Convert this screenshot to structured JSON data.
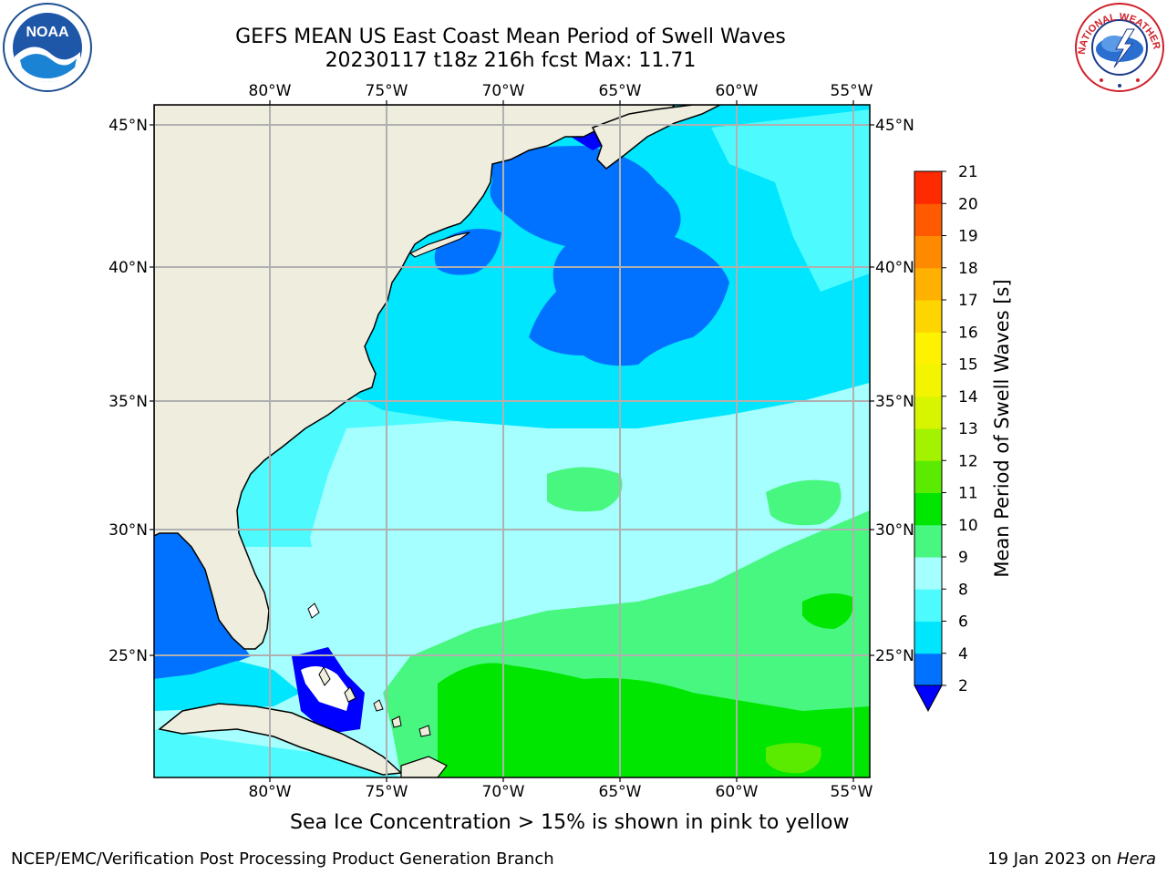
{
  "title": {
    "line1": "GEFS MEAN US East Coast Mean Period of Swell Waves",
    "line2": "20230117 t18z 216h fcst   Max: 11.71"
  },
  "map": {
    "lon_labels": [
      "80°W",
      "75°W",
      "70°W",
      "65°W",
      "60°W",
      "55°W"
    ],
    "lat_labels": [
      "45°N",
      "40°N",
      "35°N",
      "30°N",
      "25°N"
    ],
    "land_color": "#efedde",
    "gridline_color": "#b0b0b0"
  },
  "colorbar": {
    "label": "Mean Period of Swell Waves [s]",
    "ticks": [
      "2",
      "4",
      "6",
      "8",
      "9",
      "10",
      "11",
      "12",
      "13",
      "14",
      "15",
      "16",
      "17",
      "18",
      "19",
      "20",
      "21"
    ],
    "colors": [
      "#0072ff",
      "#00e6ff",
      "#4dfbff",
      "#a5ffff",
      "#47f77f",
      "#00e600",
      "#5aeb00",
      "#a3f200",
      "#d8f500",
      "#f3f500",
      "#fff200",
      "#ffd500",
      "#ffb000",
      "#ff8a00",
      "#ff5a00",
      "#ff2a00"
    ],
    "under_color": "#0000ff"
  },
  "note": "Sea Ice Concentration > 15% is shown in pink to yellow",
  "footer": {
    "left": "NCEP/EMC/Verification Post Processing Product Generation Branch",
    "date": "19 Jan 2023 on ",
    "host": "Hera"
  },
  "logos": {
    "noaa_text": "NOAA",
    "nws_text": "NATIONAL WEATHER SERVICE"
  }
}
